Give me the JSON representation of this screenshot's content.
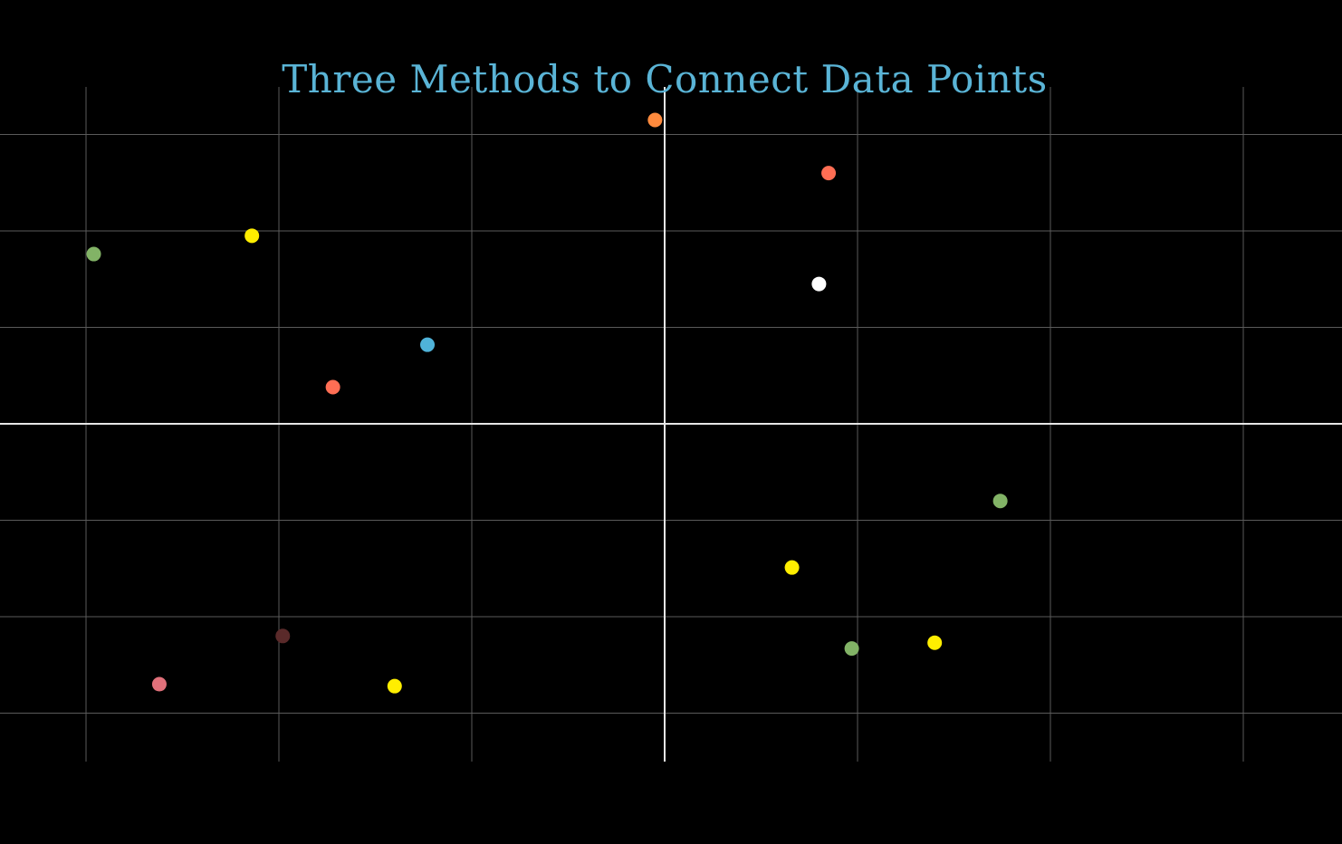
{
  "page": {
    "background_color": "#000000"
  },
  "chart_data": {
    "type": "scatter",
    "title": "Three Methods to Connect Data Points",
    "title_color": "#5ab4d6",
    "xlabel": "",
    "ylabel": "",
    "xlim": [
      -3.45,
      3.45
    ],
    "ylim": [
      -3.5,
      3.5
    ],
    "x_gridlines": [
      -3,
      -2,
      -1,
      1,
      2,
      3
    ],
    "y_gridlines": [
      -3,
      -2,
      -1,
      1,
      2,
      3
    ],
    "grid": true,
    "grid_color": "#5a5a5a",
    "axis_color": "#e6e6e6",
    "axes_through_origin": true,
    "tick_labels": false,
    "legend": false,
    "points": [
      {
        "x": -2.96,
        "y": 1.76,
        "color": "#82b366"
      },
      {
        "x": -2.14,
        "y": 1.95,
        "color": "#ffee00"
      },
      {
        "x": -1.72,
        "y": 0.38,
        "color": "#ff6e54"
      },
      {
        "x": -1.23,
        "y": 0.82,
        "color": "#4fb3d9"
      },
      {
        "x": -0.05,
        "y": 3.15,
        "color": "#ff8a3d"
      },
      {
        "x": 0.85,
        "y": 2.6,
        "color": "#ff6e54"
      },
      {
        "x": 0.8,
        "y": 1.45,
        "color": "#ffffff"
      },
      {
        "x": 1.74,
        "y": -0.8,
        "color": "#82b366"
      },
      {
        "x": 0.66,
        "y": -1.49,
        "color": "#ffee00"
      },
      {
        "x": 0.97,
        "y": -2.33,
        "color": "#82b366"
      },
      {
        "x": 1.4,
        "y": -2.27,
        "color": "#ffee00"
      },
      {
        "x": -2.62,
        "y": -2.7,
        "color": "#e0707a"
      },
      {
        "x": -1.98,
        "y": -2.2,
        "color": "#5a2a2a"
      },
      {
        "x": -1.4,
        "y": -2.72,
        "color": "#ffee00"
      }
    ]
  }
}
